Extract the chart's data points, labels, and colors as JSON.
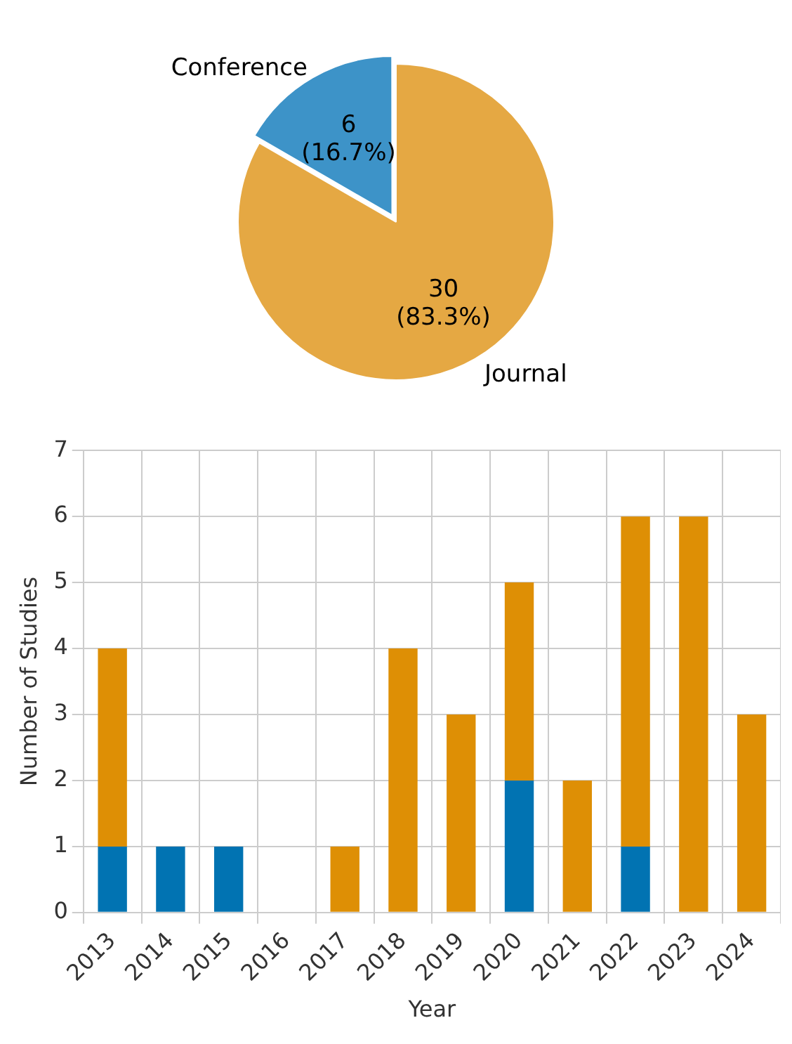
{
  "chart_data": [
    {
      "type": "pie",
      "categories": [
        "Journal",
        "Conference"
      ],
      "values": [
        30,
        6
      ],
      "colors": [
        "#e5a843",
        "#3d93c8"
      ],
      "value_labels": [
        "30\n(83.3%)",
        "6\n(16.7%)"
      ],
      "legend": false
    },
    {
      "type": "bar",
      "stacked": true,
      "categories": [
        "2013",
        "2014",
        "2015",
        "2016",
        "2017",
        "2018",
        "2019",
        "2020",
        "2021",
        "2022",
        "2023",
        "2024"
      ],
      "series": [
        {
          "color": "#0173b2",
          "values": [
            1,
            1,
            1,
            0,
            0,
            0,
            0,
            2,
            0,
            1,
            0,
            0
          ]
        },
        {
          "color": "#de8f05",
          "values": [
            3,
            0,
            0,
            0,
            1,
            4,
            3,
            3,
            2,
            5,
            6,
            3
          ]
        }
      ],
      "xlabel": "Year",
      "ylabel": "Number of Studies",
      "ylim": [
        0,
        7
      ],
      "yticks": [
        0,
        1,
        2,
        3,
        4,
        5,
        6,
        7
      ],
      "grid": true,
      "legend": false
    }
  ]
}
